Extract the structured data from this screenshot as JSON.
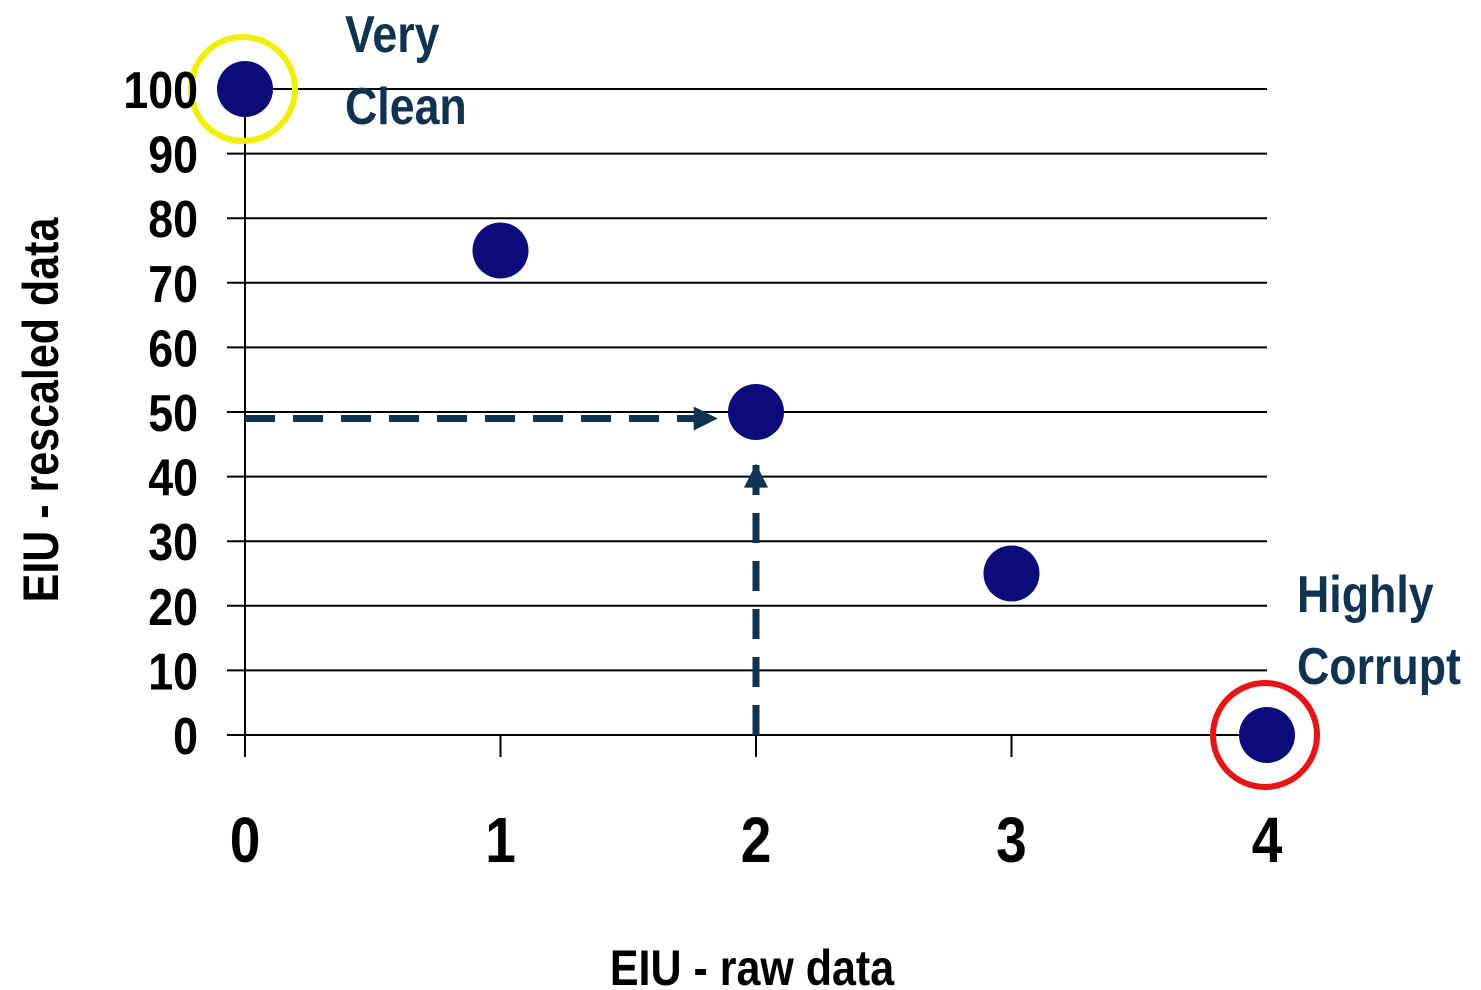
{
  "colors": {
    "point": "#0b0b7a",
    "annotation_text": "#0f3350",
    "dashed_arrow": "#0f3350",
    "highlight_clean": "#f0f000",
    "highlight_corrupt": "#e61414",
    "gridline": "#000000"
  },
  "chart_data": {
    "type": "scatter",
    "title": "",
    "xlabel": "EIU - raw data",
    "ylabel": "EIU - rescaled data",
    "xlim": [
      0,
      4
    ],
    "ylim": [
      0,
      100
    ],
    "x_ticks": [
      0,
      1,
      2,
      3,
      4
    ],
    "x_tick_labels": [
      "0",
      "1",
      "2",
      "3",
      "4"
    ],
    "y_ticks": [
      0,
      10,
      20,
      30,
      40,
      50,
      60,
      70,
      80,
      90,
      100
    ],
    "y_tick_labels": [
      "0",
      "10",
      "20",
      "30",
      "40",
      "50",
      "60",
      "70",
      "80",
      "90",
      "100"
    ],
    "grid": "horizontal",
    "legend": "none",
    "points": [
      {
        "x": 0,
        "y": 100
      },
      {
        "x": 1,
        "y": 75
      },
      {
        "x": 2,
        "y": 50
      },
      {
        "x": 3,
        "y": 25
      },
      {
        "x": 4,
        "y": 0
      }
    ],
    "annotations": [
      {
        "lines": [
          "Very",
          "Clean"
        ],
        "anchor_point": 0,
        "highlight": "highlight_clean"
      },
      {
        "lines": [
          "Highly",
          "Corrupt"
        ],
        "anchor_point": 4,
        "highlight": "highlight_corrupt"
      }
    ],
    "guide_arrows": [
      {
        "from": [
          0,
          49
        ],
        "to": [
          1.85,
          49
        ]
      },
      {
        "from": [
          2,
          0
        ],
        "to": [
          2,
          42
        ]
      }
    ]
  }
}
